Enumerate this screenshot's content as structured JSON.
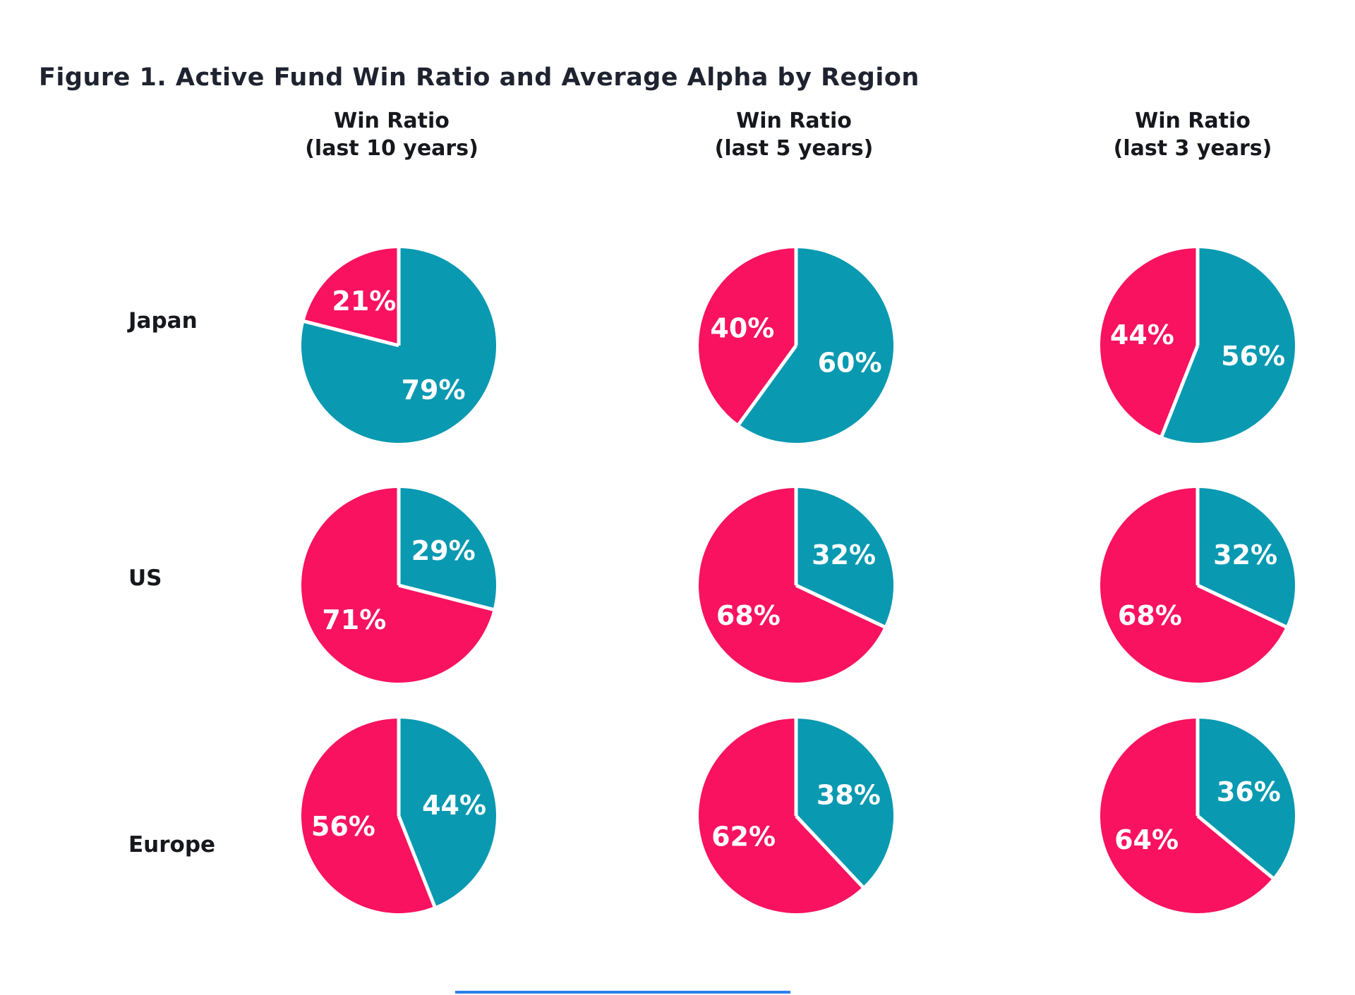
{
  "title": "Figure 1. Active Fund Win Ratio and Average Alpha by Region",
  "colors": {
    "pink": "#F8125F",
    "teal": "#0999B1",
    "heading_text": "#1F2330",
    "slice_label_text": "#FFFFFF",
    "background": "#FFFFFF",
    "bottom_rule": "#2E7FEA"
  },
  "chart_data": {
    "type": "pie",
    "title": "Figure 1. Active Fund Win Ratio and Average Alpha by Region",
    "layout": "3x3 grid of two-slice pies; teal slice starts at 12 o'clock sweeping clockwise, pink slice fills the remainder; white divider lines between slices; labels inside slices",
    "legend_position": "none",
    "columns": [
      {
        "line1": "Win Ratio",
        "line2": "(last 10 years)"
      },
      {
        "line1": "Win Ratio",
        "line2": "(last 5 years)"
      },
      {
        "line1": "Win Ratio",
        "line2": "(last 3 years)"
      }
    ],
    "rows": [
      {
        "label": "Japan"
      },
      {
        "label": "US"
      },
      {
        "label": "Europe"
      }
    ],
    "pies": [
      {
        "row": "Japan",
        "column": "Win Ratio (last 10 years)",
        "pink_value": 21,
        "teal_value": 79,
        "pink_label": "21%",
        "teal_label": "79%"
      },
      {
        "row": "Japan",
        "column": "Win Ratio (last 5 years)",
        "pink_value": 40,
        "teal_value": 60,
        "pink_label": "40%",
        "teal_label": "60%"
      },
      {
        "row": "Japan",
        "column": "Win Ratio (last 3 years)",
        "pink_value": 44,
        "teal_value": 56,
        "pink_label": "44%",
        "teal_label": "56%"
      },
      {
        "row": "US",
        "column": "Win Ratio (last 10 years)",
        "pink_value": 71,
        "teal_value": 29,
        "pink_label": "71%",
        "teal_label": "29%"
      },
      {
        "row": "US",
        "column": "Win Ratio (last 5 years)",
        "pink_value": 68,
        "teal_value": 32,
        "pink_label": "68%",
        "teal_label": "32%"
      },
      {
        "row": "US",
        "column": "Win Ratio (last 3 years)",
        "pink_value": 68,
        "teal_value": 32,
        "pink_label": "68%",
        "teal_label": "32%"
      },
      {
        "row": "Europe",
        "column": "Win Ratio (last 10 years)",
        "pink_value": 56,
        "teal_value": 44,
        "pink_label": "56%",
        "teal_label": "44%"
      },
      {
        "row": "Europe",
        "column": "Win Ratio (last 5 years)",
        "pink_value": 62,
        "teal_value": 38,
        "pink_label": "62%",
        "teal_label": "38%"
      },
      {
        "row": "Europe",
        "column": "Win Ratio (last 3 years)",
        "pink_value": 64,
        "teal_value": 36,
        "pink_label": "64%",
        "teal_label": "36%"
      }
    ]
  }
}
